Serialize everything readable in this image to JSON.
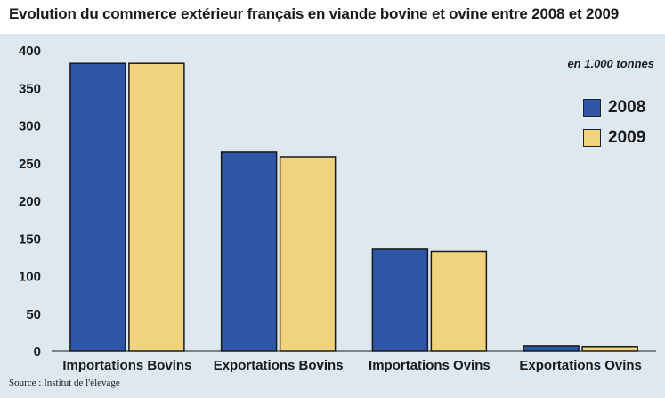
{
  "chart_data": {
    "type": "bar",
    "title": "Evolution du commerce extérieur français en viande bovine et ovine entre 2008 et 2009",
    "unit": "en 1.000 tonnes",
    "categories": [
      "Importations Bovins",
      "Exportations Bovins",
      "Importations Ovins",
      "Exportations Ovins"
    ],
    "series": [
      {
        "name": "2008",
        "values": [
          382,
          264,
          135,
          6
        ],
        "color": "#2e56a6"
      },
      {
        "name": "2009",
        "values": [
          382,
          258,
          132,
          5
        ],
        "color": "#f1d27d"
      }
    ],
    "ylim": [
      0,
      400
    ],
    "yticks": [
      0,
      50,
      100,
      150,
      200,
      250,
      300,
      350,
      400
    ],
    "legend_position": "top-right",
    "grid": false,
    "source": "Source : Institut de l'élevage"
  }
}
